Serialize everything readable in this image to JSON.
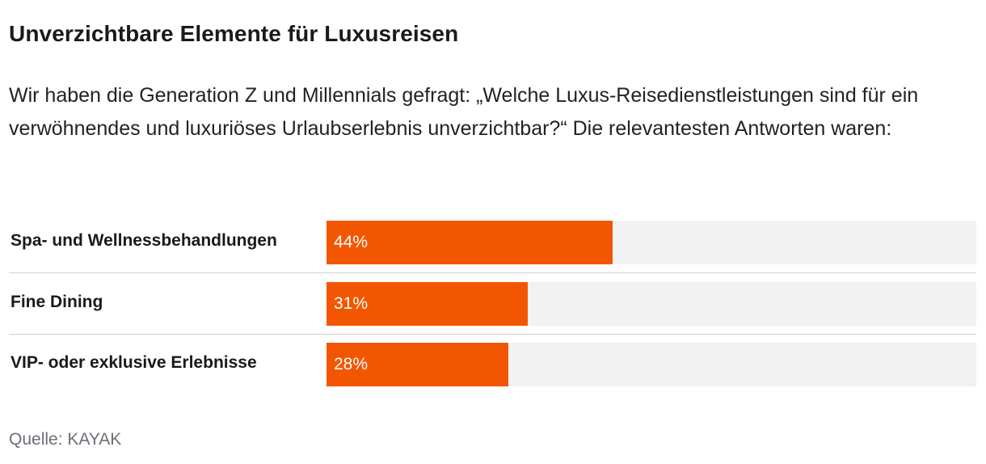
{
  "title": "Unverzichtbare Elemente für Luxusreisen",
  "subtitle": "Wir haben die Generation Z und Millennials gefragt: „Welche Luxus-Reisedienstleistungen sind für ein verwöhnendes und luxuriöses Urlaubserlebnis unverzichtbar?“ Die relevantesten Antworten waren:",
  "source": "Quelle: KAYAK",
  "colors": {
    "bar": "#f35600",
    "track": "#f2f2f2"
  },
  "chart_data": {
    "type": "bar",
    "orientation": "horizontal",
    "title": "Unverzichtbare Elemente für Luxusreisen",
    "categories": [
      "Spa- und Wellnessbehandlungen",
      "Fine Dining",
      "VIP- oder exklusive Erlebnisse"
    ],
    "values": [
      44,
      31,
      28
    ],
    "value_labels": [
      "44%",
      "31%",
      "28%"
    ],
    "unit": "%",
    "xlim": [
      0,
      100
    ],
    "xlabel": "",
    "ylabel": ""
  }
}
